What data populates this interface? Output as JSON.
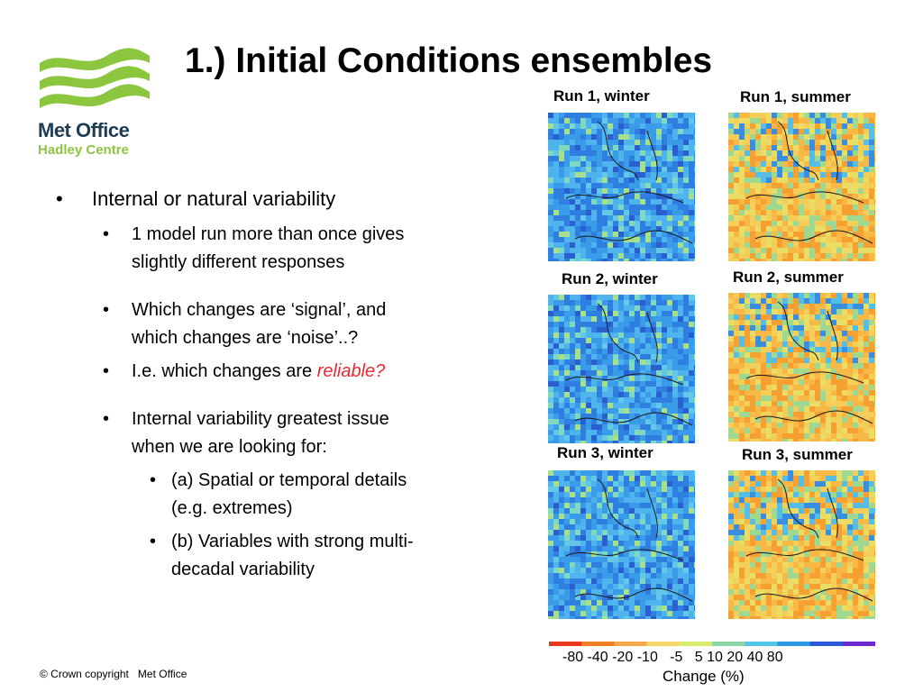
{
  "branding": {
    "line1": "Met Office",
    "line2": "Hadley Centre",
    "colors": {
      "green": "#8cc63f",
      "navy": "#1f3d52"
    }
  },
  "slide": {
    "title": "1.) Initial Conditions ensembles",
    "bullets": {
      "b1": "Internal or natural variability",
      "b1_1": "1 model run more than once gives slightly different responses",
      "b1_2": "Which changes are ‘signal’, and which changes are ‘noise’..?",
      "b1_3_prefix": "I.e. which changes are ",
      "b1_3_emph": "reliable?",
      "b1_4": "Internal variability greatest issue when we are looking for:",
      "b1_4_a": "(a) Spatial or temporal details (e.g. extremes)",
      "b1_4_b": "(b) Variables with strong multi-decadal variability"
    },
    "emphasis_color": "#e32c35"
  },
  "maps": [
    {
      "label": "Run 1, winter",
      "season": "winter"
    },
    {
      "label": "Run 1, summer",
      "season": "summer"
    },
    {
      "label": "Run 2, winter",
      "season": "winter"
    },
    {
      "label": "Run 2, summer",
      "season": "summer"
    },
    {
      "label": "Run 3, winter",
      "season": "winter"
    },
    {
      "label": "Run 3, summer",
      "season": "summer"
    }
  ],
  "colorbar": {
    "ticks": [
      "-80",
      "-40",
      "-20",
      "-10",
      "-5",
      "5",
      "10",
      "20",
      "40",
      "80"
    ],
    "label": "Change (%)",
    "colors": [
      "#e8391c",
      "#f07f22",
      "#f7a84a",
      "#f5d56a",
      "#d9ea6f",
      "#8dd6a6",
      "#55c6e6",
      "#2c9be4",
      "#2f58d6",
      "#6a2bd0"
    ]
  },
  "footer": {
    "copyright": "© Crown copyright",
    "org": "Met Office"
  }
}
